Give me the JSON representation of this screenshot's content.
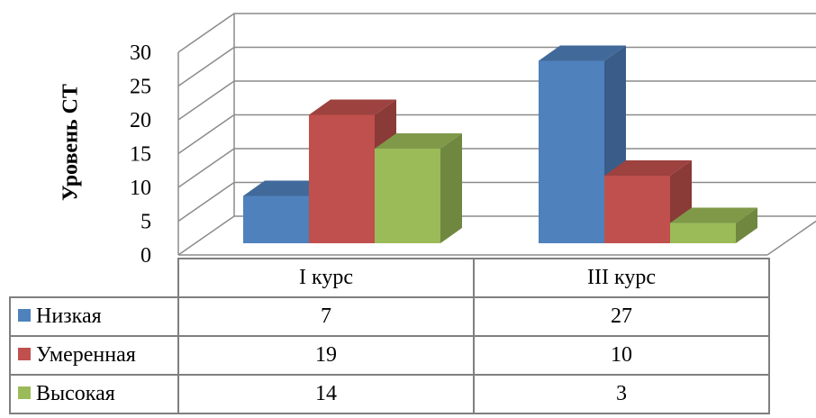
{
  "chart_data": {
    "type": "bar",
    "three_d": true,
    "title": "",
    "ylabel": "Уровень СТ",
    "xlabel": "",
    "ylim": [
      0,
      30
    ],
    "yticks": [
      "0",
      "5",
      "10",
      "15",
      "20",
      "25",
      "30"
    ],
    "categories": [
      "I курс",
      "III курс"
    ],
    "series": [
      {
        "name": "Низкая",
        "values": [
          7,
          27
        ],
        "color": "#4f81bd"
      },
      {
        "name": "Умеренная",
        "values": [
          19,
          10
        ],
        "color": "#c0504d"
      },
      {
        "name": "Высокая",
        "values": [
          14,
          3
        ],
        "color": "#9bbb59"
      }
    ],
    "grid": true,
    "legend": "data-table",
    "data_table": {
      "rows": [
        {
          "series": "Низкая",
          "cells": [
            "7",
            "27"
          ]
        },
        {
          "series": "Умеренная",
          "cells": [
            "19",
            "10"
          ]
        },
        {
          "series": "Высокая",
          "cells": [
            "14",
            "3"
          ]
        }
      ]
    }
  }
}
